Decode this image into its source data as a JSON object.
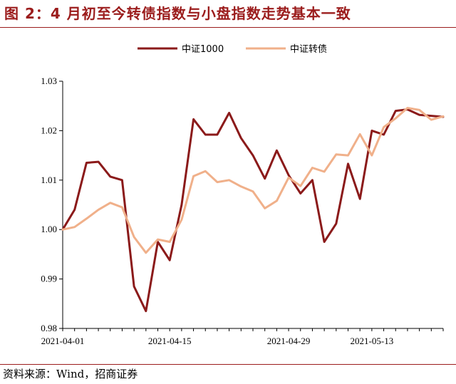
{
  "title": "图 2：4 月初至今转债指数与小盘指数走势基本一致",
  "footer": "资料来源：Wind，招商证券",
  "colors": {
    "accent": "#9b1c1c",
    "series1": "#8b1a1a",
    "series2": "#f0b08a"
  },
  "chart_data": {
    "type": "line",
    "title": "",
    "xlabel": "",
    "ylabel": "",
    "ylim": [
      0.98,
      1.03
    ],
    "yticks": [
      "1.03",
      "1.02",
      "1.01",
      "1.00",
      "0.99",
      "0.98"
    ],
    "xtick_labels": [
      "2021-04-01",
      "2021-04-15",
      "2021-04-29",
      "2021-05-13"
    ],
    "legend_position": "top-center",
    "grid": false,
    "x": [
      "2021-04-01",
      "2021-04-02",
      "2021-04-06",
      "2021-04-07",
      "2021-04-08",
      "2021-04-09",
      "2021-04-12",
      "2021-04-13",
      "2021-04-14",
      "2021-04-15",
      "2021-04-16",
      "2021-04-19",
      "2021-04-20",
      "2021-04-21",
      "2021-04-22",
      "2021-04-23",
      "2021-04-26",
      "2021-04-27",
      "2021-04-28",
      "2021-04-29",
      "2021-04-30",
      "2021-05-06",
      "2021-05-07",
      "2021-05-10",
      "2021-05-11",
      "2021-05-12",
      "2021-05-13",
      "2021-05-14",
      "2021-05-17",
      "2021-05-18",
      "2021-05-19",
      "2021-05-20",
      "2021-05-21"
    ],
    "series": [
      {
        "name": "中证1000",
        "values": [
          1.0,
          1.004,
          1.0135,
          1.0137,
          1.0107,
          1.01,
          0.9885,
          0.9835,
          0.9975,
          0.9938,
          1.005,
          1.0223,
          1.0192,
          1.0192,
          1.0236,
          1.0185,
          1.015,
          1.0103,
          1.016,
          1.011,
          1.0073,
          1.01,
          0.9975,
          1.0012,
          1.0133,
          1.0062,
          1.02,
          1.0192,
          1.024,
          1.0243,
          1.0232,
          1.023,
          1.0228
        ]
      },
      {
        "name": "中证转债",
        "values": [
          1.0,
          1.0005,
          1.0022,
          1.004,
          1.0054,
          1.0045,
          0.9985,
          0.9953,
          0.998,
          0.9975,
          1.002,
          1.0108,
          1.0118,
          1.0096,
          1.01,
          1.0087,
          1.0077,
          1.0043,
          1.0058,
          1.0105,
          1.0088,
          1.0125,
          1.0117,
          1.0152,
          1.015,
          1.0193,
          1.015,
          1.0207,
          1.0225,
          1.0246,
          1.0242,
          1.0222,
          1.0229
        ]
      }
    ]
  }
}
